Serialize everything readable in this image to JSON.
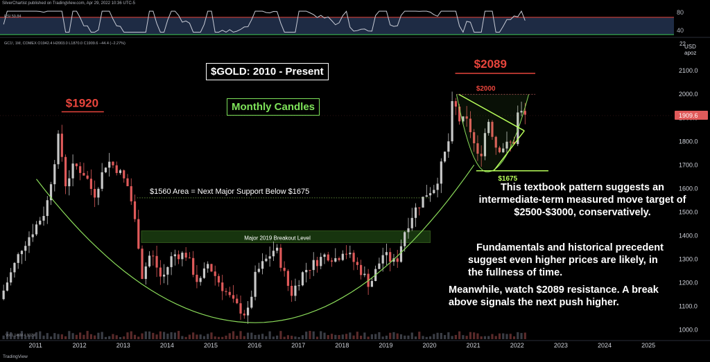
{
  "header": {
    "published_by": "SilverChartist published on TradingView.com, Apr 29, 2022 10:36 UTC-5",
    "symbol_line": "GC1!, 1M, COMEX  O1942.4  H2003.0  L1870.0  C1909.6  −44.4 (−2.27%)",
    "rsi_label": "RSI  59.84",
    "volume_label": "Vol  1.146M  4.302M",
    "logo": "TradingView"
  },
  "annotations": {
    "title": "$GOLD: 2010 - Present",
    "interval": "Monthly Candles",
    "peak_2011": "$1920",
    "peak_2022": "$2089",
    "level_2000": "$2000",
    "level_1675": "$1675",
    "support_note": "$1560 Area = Next Major Support Below $1675",
    "breakout_zone": "Major 2019 Breakout Level",
    "para1": "This textbook pattern suggests an intermediate-term measured move target of $2500-$3000, conservatively.",
    "para2": "Fundamentals and historical precedent suggest even higher prices are likely, in the fullness of time.",
    "para3": "Meanwhile, watch $2089 resistance.  A break above signals the next push higher."
  },
  "colors": {
    "background": "#000000",
    "up_candle": "#c8c8c8",
    "down_candle": "#e05a5a",
    "curve": "#8bdc5a",
    "wedge": "#b8ff5a",
    "red_annotation": "#e8453c",
    "price_tag": "#e05a5a",
    "rsi_line": "#c8ccd6",
    "rsi_band": "#1e2b44",
    "rsi_upper": "#e8453c",
    "rsi_lower": "#3fcf5a",
    "breakout_fill": "#1a3a10"
  },
  "chart_data": [
    {
      "type": "candlestick",
      "title": "$GOLD: 2010 - Present",
      "interval": "1M",
      "x_ticks": [
        "2011",
        "2012",
        "2013",
        "2014",
        "2015",
        "2016",
        "2017",
        "2018",
        "2019",
        "2020",
        "2021",
        "2022",
        "2023",
        "2024",
        "2025"
      ],
      "y_ticks": [
        1000.0,
        1100.0,
        1200.0,
        1300.0,
        1400.0,
        1500.0,
        1600.0,
        1700.0,
        1800.0,
        1900.0,
        2000.0,
        2100.0
      ],
      "y_unit": "USD",
      "y_scale_mode": "apoz",
      "current_price": "1909.6",
      "top_tick_partial": "22",
      "ylim": [
        960,
        2230
      ],
      "xlim": [
        2010.2,
        2025.6
      ],
      "anchors": [
        [
          2010.25,
          1130
        ],
        [
          2010.5,
          1240
        ],
        [
          2010.75,
          1350
        ],
        [
          2011.0,
          1420
        ],
        [
          2011.3,
          1510
        ],
        [
          2011.6,
          1830
        ],
        [
          2011.75,
          1620
        ],
        [
          2011.95,
          1700
        ],
        [
          2012.2,
          1660
        ],
        [
          2012.4,
          1570
        ],
        [
          2012.7,
          1720
        ],
        [
          2012.95,
          1680
        ],
        [
          2013.2,
          1600
        ],
        [
          2013.4,
          1390
        ],
        [
          2013.5,
          1230
        ],
        [
          2013.7,
          1330
        ],
        [
          2013.95,
          1210
        ],
        [
          2014.2,
          1320
        ],
        [
          2014.5,
          1320
        ],
        [
          2014.8,
          1190
        ],
        [
          2015.0,
          1280
        ],
        [
          2015.3,
          1190
        ],
        [
          2015.6,
          1110
        ],
        [
          2015.9,
          1060
        ],
        [
          2016.1,
          1240
        ],
        [
          2016.55,
          1350
        ],
        [
          2016.9,
          1150
        ],
        [
          2017.2,
          1250
        ],
        [
          2017.7,
          1320
        ],
        [
          2017.95,
          1300
        ],
        [
          2018.1,
          1345
        ],
        [
          2018.5,
          1250
        ],
        [
          2018.7,
          1190
        ],
        [
          2019.0,
          1320
        ],
        [
          2019.3,
          1280
        ],
        [
          2019.5,
          1420
        ],
        [
          2019.7,
          1500
        ],
        [
          2020.0,
          1580
        ],
        [
          2020.2,
          1610
        ],
        [
          2020.5,
          1800
        ],
        [
          2020.6,
          1980
        ],
        [
          2020.75,
          1890
        ],
        [
          2020.95,
          1880
        ],
        [
          2021.2,
          1710
        ],
        [
          2021.4,
          1900
        ],
        [
          2021.6,
          1770
        ],
        [
          2021.8,
          1780
        ],
        [
          2022.0,
          1800
        ],
        [
          2022.1,
          1940
        ],
        [
          2022.2,
          1910
        ]
      ],
      "peaks": [
        {
          "label": "$1920",
          "x": 2011.67,
          "y": 1920
        },
        {
          "label": "$2089",
          "x": 2022.17,
          "y": 2089
        }
      ],
      "levels": [
        {
          "label": "$2000",
          "y": 2000,
          "x1": 2020.6,
          "x2": 2022.4
        },
        {
          "label": "$1675",
          "y": 1675,
          "x1": 2021.05,
          "x2": 2022.7
        },
        {
          "label": "$1560 Area = Next Major Support Below $1675",
          "y": 1560,
          "x1": 2013.3,
          "x2": 2020.0
        },
        {
          "label": "Major 2019 Breakout Level",
          "y_low": 1370,
          "y_high": 1420,
          "x1": 2013.4,
          "x2": 2020.0
        }
      ],
      "cup": {
        "x_left": 2011.0,
        "x_bottom": 2016.0,
        "x_right": 2021.0,
        "y_left": 1640,
        "y_bottom": 1030,
        "y_right": 1700
      },
      "handle": {
        "x_left": 2020.6,
        "x_bottom": 2021.3,
        "x_right": 2022.25,
        "y_left": 2000,
        "y_bottom": 1670,
        "y_right": 2000
      },
      "wedge": {
        "upper": [
          [
            2020.65,
            2000
          ],
          [
            2022.15,
            1845
          ]
        ],
        "lower": [
          [
            2021.45,
            1675
          ],
          [
            2022.15,
            1845
          ]
        ]
      }
    },
    {
      "type": "line",
      "title": "RSI",
      "last_value": "59.84",
      "y_ticks": [
        80.0,
        40.0
      ],
      "ylim": [
        30,
        88
      ],
      "bands": {
        "upper": 70,
        "lower": 30
      }
    }
  ]
}
